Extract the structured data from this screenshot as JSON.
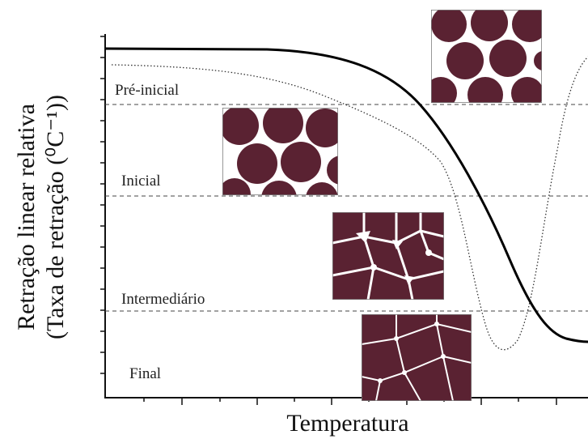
{
  "axes": {
    "y_label_line1": "Retração linear relativa",
    "y_label_line2": "(Taxa de retração (⁰C⁻¹))",
    "x_label": "Temperatura"
  },
  "stages": [
    {
      "label": "Pré-inicial"
    },
    {
      "label": "Inicial"
    },
    {
      "label": "Intermediário"
    },
    {
      "label": "Final"
    }
  ]
}
